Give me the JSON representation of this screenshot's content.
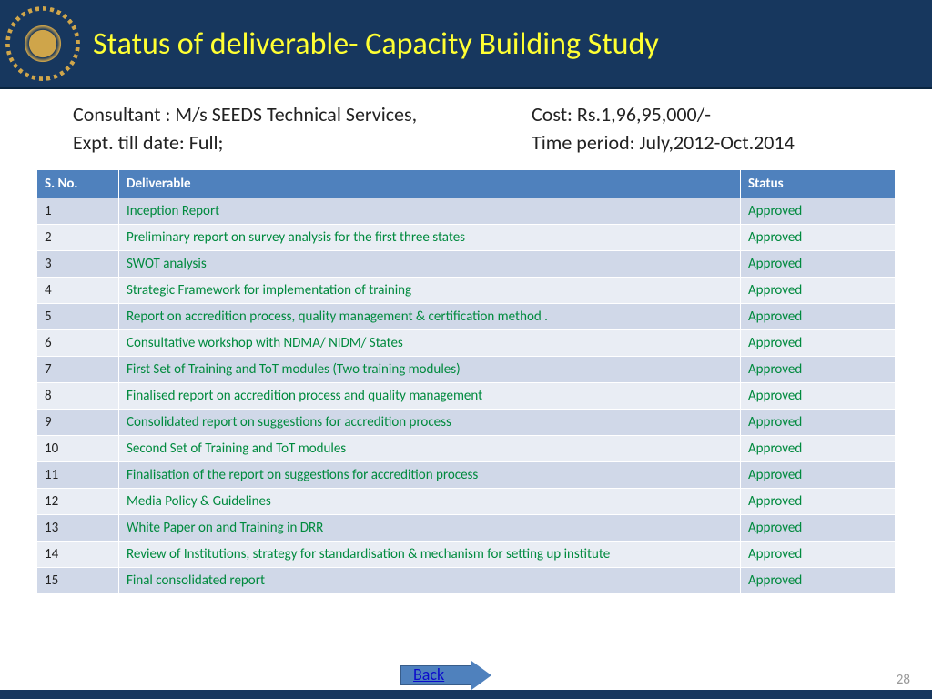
{
  "header": {
    "title": "Status of deliverable- Capacity Building Study",
    "bg_color": "#17375e",
    "title_color": "#ffff33"
  },
  "meta": {
    "consultant_label": "Consultant : M/s SEEDS Technical Services,",
    "cost_label": "Cost:  Rs.1,96,95,000/-",
    "expt_label": "Expt. till date: Full;",
    "period_label": "Time period: July,2012-Oct.2014"
  },
  "table": {
    "header_bg": "#4f81bd",
    "header_fg": "#ffffff",
    "row_odd_bg": "#d0d8e8",
    "row_even_bg": "#e9edf4",
    "deliverable_color": "#008a3e",
    "status_color": "#008a3e",
    "columns": {
      "sno": "S. No.",
      "deliverable": "Deliverable",
      "status": "Status"
    },
    "rows": [
      {
        "sno": "1",
        "deliverable": "Inception Report",
        "status": "Approved"
      },
      {
        "sno": "2",
        "deliverable": "Preliminary report on survey analysis for the first three states",
        "status": "Approved"
      },
      {
        "sno": "3",
        "deliverable": "SWOT analysis",
        "status": "Approved"
      },
      {
        "sno": "4",
        "deliverable": "Strategic Framework for implementation of training",
        "status": "Approved"
      },
      {
        "sno": "5",
        "deliverable": "Report on accredition process, quality management & certification method .",
        "status": "Approved"
      },
      {
        "sno": "6",
        "deliverable": "Consultative workshop with NDMA/ NIDM/ States",
        "status": "Approved"
      },
      {
        "sno": "7",
        "deliverable": "First Set of Training and ToT modules (Two training modules)",
        "status": "Approved"
      },
      {
        "sno": "8",
        "deliverable": "Finalised report on accredition process and quality management",
        "status": "Approved"
      },
      {
        "sno": "9",
        "deliverable": "Consolidated report on suggestions for accredition process",
        "status": "Approved"
      },
      {
        "sno": "10",
        "deliverable": "Second Set of Training and ToT modules",
        "status": "Approved"
      },
      {
        "sno": "11",
        "deliverable": "Finalisation of the report on suggestions for accredition process",
        "status": "Approved"
      },
      {
        "sno": "12",
        "deliverable": "Media Policy & Guidelines",
        "status": "Approved"
      },
      {
        "sno": "13",
        "deliverable": "White Paper on and Training in DRR",
        "status": "Approved"
      },
      {
        "sno": "14",
        "deliverable": "Review of Institutions, strategy for standardisation & mechanism for setting up institute",
        "status": "Approved"
      },
      {
        "sno": "15",
        "deliverable": " Final consolidated report",
        "status": "Approved"
      }
    ]
  },
  "footer": {
    "back_label": "Back",
    "page_number": "28",
    "arrow_fill": "#4f81bd",
    "arrow_border": "#385d8a"
  }
}
